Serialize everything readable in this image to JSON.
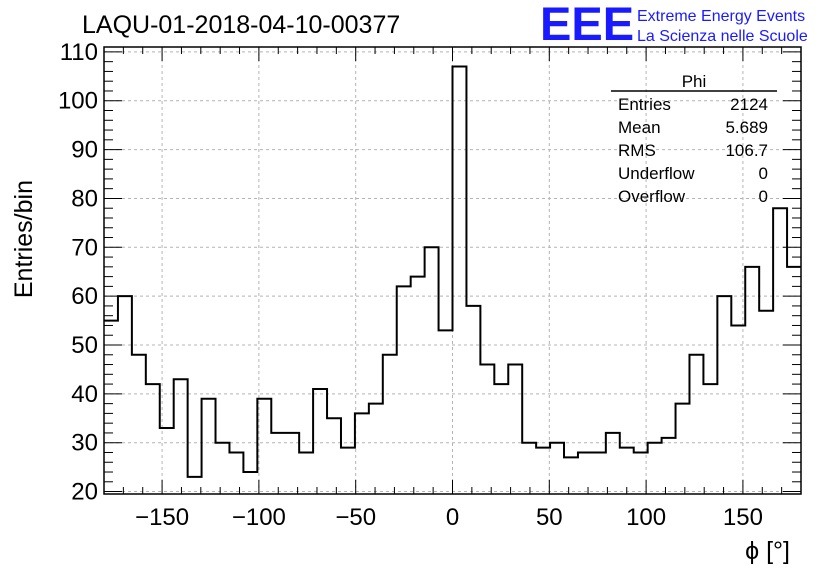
{
  "header": {
    "run_title": "LAQU-01-2018-04-10-00377",
    "logo_text": "EEE",
    "logo_line1": "Extreme Energy Events",
    "logo_line2": "La Scienza nelle Scuole",
    "logo_color": "#1a1aff"
  },
  "stats_box": {
    "title": "Phi",
    "rows": [
      {
        "label": "Entries",
        "value": "2124"
      },
      {
        "label": "Mean",
        "value": "5.689"
      },
      {
        "label": "RMS",
        "value": "106.7"
      },
      {
        "label": "Underflow",
        "value": "0"
      },
      {
        "label": "Overflow",
        "value": "0"
      }
    ]
  },
  "chart_data": {
    "type": "bar",
    "style": "step-histogram",
    "title": "LAQU-01-2018-04-10-00377",
    "xlabel": "ϕ [°]",
    "ylabel": "Entries/bin",
    "xlim": [
      -180,
      180
    ],
    "ylim": [
      19.5,
      111
    ],
    "bin_width": 7.2,
    "bin_start": -180,
    "xticks": [
      -150,
      -100,
      -50,
      0,
      50,
      100,
      150
    ],
    "yticks": [
      20,
      30,
      40,
      50,
      60,
      70,
      80,
      90,
      100,
      110
    ],
    "grid": true,
    "line_color": "#000000",
    "values": [
      55,
      60,
      48,
      42,
      33,
      43,
      23,
      39,
      30,
      28,
      24,
      39,
      32,
      32,
      28,
      41,
      35,
      29,
      36,
      38,
      48,
      62,
      64,
      70,
      53,
      107,
      58,
      46,
      42,
      46,
      30,
      29,
      30,
      27,
      28,
      28,
      32,
      29,
      28,
      30,
      31,
      38,
      48,
      42,
      60,
      54,
      66,
      57,
      78,
      66
    ]
  }
}
